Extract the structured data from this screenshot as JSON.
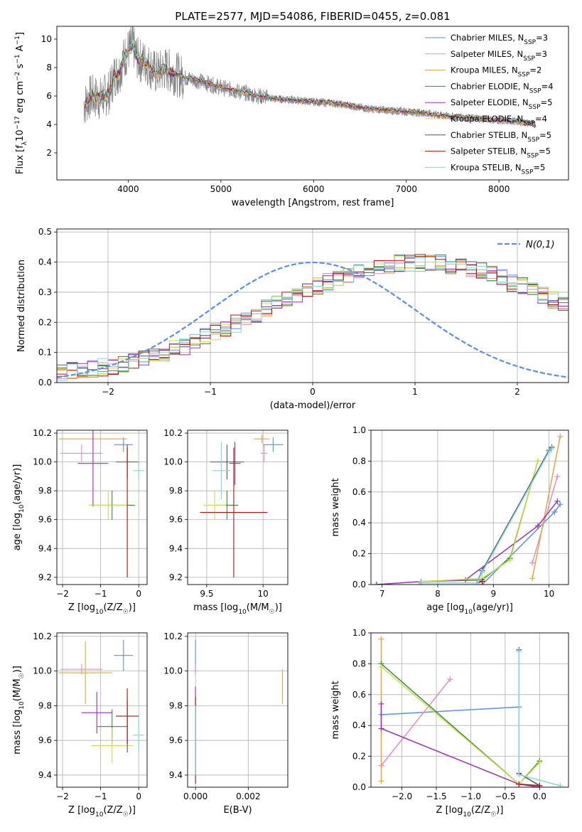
{
  "figure": {
    "title": "PLATE=2577, MJD=54086, FIBERID=0455, z=0.081"
  },
  "colors": {
    "chabrier_miles": "#5b8ee6",
    "salpeter_miles": "#e88bc4",
    "kroupa_miles": "#e8a33d",
    "chabrier_elodie": "#3a8a3a",
    "salpeter_elodie": "#9b30b5",
    "kroupa_elodie": "#c8e04a",
    "chabrier_stelib": "#555555",
    "salpeter_stelib": "#b01010",
    "kroupa_stelib": "#7fd8e0",
    "data": "#808080",
    "normal_curve": "#5b8ee6",
    "grid": "#b0b0b0"
  },
  "chart_data": [
    {
      "id": "spectrum",
      "type": "line",
      "title": "PLATE=2577, MJD=54086, FIBERID=0455, z=0.081",
      "xlabel": "wavelength [Angstrom, rest frame]",
      "ylabel": "Flux [f_λ10^-17 erg cm^-2 s^-1 A^-1]",
      "xlim": [
        3230,
        8750
      ],
      "ylim": [
        0.1,
        10.9
      ],
      "xticks": [
        4000,
        5000,
        6000,
        7000,
        8000
      ],
      "yticks": [
        2,
        4,
        6,
        8,
        10
      ],
      "grid": false,
      "legend_position": "top-right",
      "legend": [
        "Chabrier MILES, N_SSP=3",
        "Salpeter MILES, N_SSP=3",
        "Kroupa MILES, N_SSP=2",
        "Chabrier ELODIE, N_SSP=4",
        "Salpeter ELODIE, N_SSP=5",
        "Kroupa ELODIE, N_SSP=4",
        "Chabrier STELIB, N_SSP=5",
        "Salpeter STELIB, N_SSP=5",
        "Kroupa STELIB, N_SSP=5"
      ],
      "model_x": [
        3530,
        3600,
        3700,
        3800,
        3850,
        3900,
        3950,
        4000,
        4050,
        4100,
        4200,
        4300,
        4400,
        4500,
        4600,
        4800,
        5000,
        5200,
        5400,
        5600,
        5800,
        6000,
        6200,
        6400,
        6600,
        6800,
        7000,
        7200,
        7400,
        7600,
        7800,
        8000,
        8200,
        8400
      ],
      "model_y": [
        5.4,
        6.0,
        5.8,
        6.3,
        7.5,
        7.6,
        8.6,
        9.2,
        9.6,
        8.6,
        8.3,
        7.6,
        7.9,
        7.6,
        7.3,
        7.0,
        6.6,
        6.3,
        6.0,
        5.8,
        5.7,
        5.6,
        5.5,
        5.3,
        5.1,
        5.0,
        4.9,
        4.8,
        4.6,
        4.5,
        4.4,
        4.3,
        4.2,
        4.0
      ]
    },
    {
      "id": "residuals",
      "type": "histogram",
      "xlabel": "(data-model)/error",
      "ylabel": "Normed distribution",
      "xlim": [
        -2.5,
        2.5
      ],
      "ylim": [
        0,
        0.51
      ],
      "xticks": [
        -2,
        -1,
        0,
        1,
        2
      ],
      "yticks": [
        0.0,
        0.1,
        0.2,
        0.3,
        0.4,
        0.5
      ],
      "grid": true,
      "legend_position": "top-right",
      "normal_label": "N(0,1)",
      "bin_width": 0.1,
      "bin_start": -2.5,
      "reference_values": [
        0.032,
        0.04,
        0.04,
        0.046,
        0.05,
        0.055,
        0.06,
        0.07,
        0.08,
        0.088,
        0.1,
        0.11,
        0.12,
        0.135,
        0.15,
        0.165,
        0.18,
        0.195,
        0.21,
        0.228,
        0.245,
        0.26,
        0.275,
        0.29,
        0.305,
        0.32,
        0.333,
        0.346,
        0.358,
        0.37,
        0.378,
        0.385,
        0.39,
        0.395,
        0.398,
        0.399,
        0.398,
        0.395,
        0.39,
        0.385,
        0.378,
        0.37,
        0.358,
        0.346,
        0.333,
        0.32,
        0.305,
        0.29,
        0.275,
        0.26,
        0.245,
        0.228,
        0.21,
        0.195,
        0.18,
        0.165,
        0.15,
        0.135,
        0.12,
        0.11,
        0.1,
        0.088,
        0.08,
        0.07,
        0.06,
        0.055,
        0.05,
        0.046,
        0.04,
        0.04,
        0.032,
        0.03,
        0.028,
        0.027,
        0.026,
        0.025
      ]
    },
    {
      "id": "age_vs_Z",
      "type": "errorbar",
      "xlabel": "Z [log10(Z/Z_sun)]",
      "ylabel": "age [log10(age/yr)]",
      "xlim": [
        -2.15,
        0.22
      ],
      "ylim": [
        9.15,
        10.22
      ],
      "xticks": [
        -2,
        -1,
        0
      ],
      "yticks": [
        9.2,
        9.4,
        9.6,
        9.8,
        10.0,
        10.2
      ],
      "grid": true,
      "points": [
        {
          "x": -0.4,
          "y": 10.12,
          "xerr": 0.25,
          "yerr": 0.05,
          "c": "chabrier_miles"
        },
        {
          "x": -1.5,
          "y": 10.06,
          "xerr": 0.55,
          "yerr": 0.06,
          "c": "salpeter_miles"
        },
        {
          "x": -1.2,
          "y": 10.16,
          "xerr": 0.9,
          "yerr": 0.03,
          "c": "kroupa_miles"
        },
        {
          "x": -0.7,
          "y": 9.7,
          "xerr": 0.6,
          "yerr": 0.1,
          "c": "chabrier_elodie"
        },
        {
          "x": -1.2,
          "y": 9.99,
          "xerr": 0.4,
          "yerr": 0.3,
          "c": "salpeter_elodie"
        },
        {
          "x": -0.8,
          "y": 9.7,
          "xerr": 0.5,
          "yerr": 0.1,
          "c": "kroupa_elodie"
        },
        {
          "x": -0.3,
          "y": 10.0,
          "xerr": 0.3,
          "yerr": 0.12,
          "c": "chabrier_stelib"
        },
        {
          "x": -0.3,
          "y": 9.65,
          "xerr": 0.0,
          "yerr": 0.45,
          "c": "salpeter_stelib"
        },
        {
          "x": 0.0,
          "y": 9.94,
          "xerr": 0.15,
          "yerr": 0.06,
          "c": "kroupa_stelib"
        }
      ]
    },
    {
      "id": "age_vs_mass",
      "type": "errorbar",
      "xlabel": "mass [log10(M/M_sun)]",
      "ylabel": "",
      "xlim": [
        9.33,
        10.22
      ],
      "ylim": [
        9.15,
        10.22
      ],
      "xticks": [
        9.5,
        10.0
      ],
      "yticks": [
        9.2,
        9.4,
        9.6,
        9.8,
        10.0,
        10.2
      ],
      "grid": true,
      "points": [
        {
          "x": 10.09,
          "y": 10.12,
          "xerr": 0.09,
          "yerr": 0.05,
          "c": "chabrier_miles"
        },
        {
          "x": 10.01,
          "y": 10.06,
          "xerr": 0.03,
          "yerr": 0.06,
          "c": "salpeter_miles"
        },
        {
          "x": 9.99,
          "y": 10.16,
          "xerr": 0.07,
          "yerr": 0.03,
          "c": "kroupa_miles"
        },
        {
          "x": 9.68,
          "y": 9.7,
          "xerr": 0.1,
          "yerr": 0.1,
          "c": "chabrier_elodie"
        },
        {
          "x": 9.75,
          "y": 9.99,
          "xerr": 0.05,
          "yerr": 0.15,
          "c": "salpeter_elodie"
        },
        {
          "x": 9.57,
          "y": 9.7,
          "xerr": 0.1,
          "yerr": 0.1,
          "c": "kroupa_elodie"
        },
        {
          "x": 9.68,
          "y": 10.0,
          "xerr": 0.15,
          "yerr": 0.12,
          "c": "chabrier_stelib"
        },
        {
          "x": 9.74,
          "y": 9.65,
          "xerr": 0.3,
          "yerr": 0.45,
          "c": "salpeter_stelib"
        },
        {
          "x": 9.63,
          "y": 9.94,
          "xerr": 0.08,
          "yerr": 0.2,
          "c": "kroupa_stelib"
        }
      ]
    },
    {
      "id": "massweight_vs_age",
      "type": "line",
      "xlabel": "age [log10(age/yr)]",
      "ylabel": "mass weight",
      "xlim": [
        6.8,
        10.35
      ],
      "ylim": [
        0,
        1.0
      ],
      "xticks": [
        7,
        8,
        9,
        10
      ],
      "yticks": [
        0.0,
        0.2,
        0.4,
        0.6,
        0.8,
        1.0
      ],
      "grid": true,
      "series": [
        {
          "c": "chabrier_miles",
          "x": [
            8.8,
            10.1,
            10.2
          ],
          "y": [
            0.0,
            0.47,
            0.52
          ]
        },
        {
          "c": "salpeter_miles",
          "x": [
            9.7,
            10.15
          ],
          "y": [
            0.14,
            0.7
          ]
        },
        {
          "c": "kroupa_miles",
          "x": [
            9.7,
            10.2
          ],
          "y": [
            0.04,
            0.96
          ]
        },
        {
          "c": "chabrier_elodie",
          "x": [
            7.7,
            8.8,
            9.3,
            9.8
          ],
          "y": [
            0.02,
            0.03,
            0.17,
            0.8
          ]
        },
        {
          "c": "salpeter_elodie",
          "x": [
            6.9,
            7.7,
            8.5,
            9.8,
            10.15
          ],
          "y": [
            0.0,
            0.02,
            0.03,
            0.38,
            0.54
          ]
        },
        {
          "c": "kroupa_elodie",
          "x": [
            7.7,
            8.8,
            9.3,
            9.8
          ],
          "y": [
            0.02,
            0.04,
            0.16,
            0.8
          ]
        },
        {
          "c": "chabrier_stelib",
          "x": [
            7.7,
            8.7,
            8.8,
            10.0,
            10.05
          ],
          "y": [
            0.01,
            0.01,
            0.09,
            0.87,
            0.89
          ]
        },
        {
          "c": "salpeter_stelib",
          "x": [
            7.7,
            8.7,
            8.8
          ],
          "y": [
            0.01,
            0.01,
            0.02
          ]
        },
        {
          "c": "kroupa_stelib",
          "x": [
            7.7,
            8.7,
            8.8,
            10.0,
            10.05
          ],
          "y": [
            0.01,
            0.01,
            0.08,
            0.86,
            0.88
          ]
        }
      ]
    },
    {
      "id": "mass_vs_Z",
      "type": "errorbar",
      "xlabel": "Z [log10(Z/Z_sun)]",
      "ylabel": "mass [log10(M/M_sun)]",
      "xlim": [
        -2.15,
        0.22
      ],
      "ylim": [
        9.33,
        10.22
      ],
      "xticks": [
        -2,
        -1,
        0
      ],
      "yticks": [
        9.4,
        9.6,
        9.8,
        10.0,
        10.2
      ],
      "grid": true,
      "points": [
        {
          "x": -0.4,
          "y": 10.09,
          "xerr": 0.25,
          "yerr": 0.09,
          "c": "chabrier_miles"
        },
        {
          "x": -1.5,
          "y": 10.01,
          "xerr": 0.55,
          "yerr": 0.03,
          "c": "salpeter_miles"
        },
        {
          "x": -1.4,
          "y": 9.99,
          "xerr": 0.7,
          "yerr": 0.18,
          "c": "kroupa_miles"
        },
        {
          "x": -0.7,
          "y": 9.68,
          "xerr": 0.4,
          "yerr": 0.1,
          "c": "chabrier_elodie"
        },
        {
          "x": -1.1,
          "y": 9.76,
          "xerr": 0.4,
          "yerr": 0.12,
          "c": "salpeter_elodie"
        },
        {
          "x": -0.7,
          "y": 9.57,
          "xerr": 0.55,
          "yerr": 0.1,
          "c": "kroupa_elodie"
        },
        {
          "x": -0.3,
          "y": 9.68,
          "xerr": 0.0,
          "yerr": 0.15,
          "c": "chabrier_stelib"
        },
        {
          "x": -0.3,
          "y": 9.74,
          "xerr": 0.3,
          "yerr": 0.16,
          "c": "salpeter_stelib"
        },
        {
          "x": 0.0,
          "y": 9.63,
          "xerr": 0.15,
          "yerr": 0.1,
          "c": "kroupa_stelib"
        }
      ]
    },
    {
      "id": "mass_vs_ebv",
      "type": "errorbar",
      "xlabel": "E(B-V)",
      "ylabel": "",
      "xlim": [
        -0.0003,
        0.0035
      ],
      "ylim": [
        9.33,
        10.22
      ],
      "xticks": [
        0.0,
        0.002
      ],
      "xticklabels": [
        "0.000",
        "0.002"
      ],
      "yticks": [
        9.4,
        9.6,
        9.8,
        10.0,
        10.2
      ],
      "grid": true,
      "points": [
        {
          "x": 0.0,
          "y": 10.09,
          "xerr": 0.0,
          "yerr": 0.09,
          "c": "chabrier_miles"
        },
        {
          "x": 0.0,
          "y": 10.01,
          "xerr": 0.0,
          "yerr": 0.03,
          "c": "salpeter_miles"
        },
        {
          "x": 0.0033,
          "y": 9.91,
          "xerr": 0.0,
          "yerr": 0.1,
          "c": "kroupa_miles"
        },
        {
          "x": 0.0,
          "y": 9.6,
          "xerr": 0.0,
          "yerr": 0.2,
          "c": "chabrier_elodie"
        },
        {
          "x": 0.0,
          "y": 9.66,
          "xerr": 0.0,
          "yerr": 0.25,
          "c": "salpeter_elodie"
        },
        {
          "x": 0.0,
          "y": 9.6,
          "xerr": 0.0,
          "yerr": 0.2,
          "c": "kroupa_elodie"
        },
        {
          "x": 0.0,
          "y": 9.6,
          "xerr": 0.0,
          "yerr": 0.2,
          "c": "chabrier_stelib"
        },
        {
          "x": 0.0,
          "y": 9.6,
          "xerr": 0.0,
          "yerr": 0.25,
          "c": "salpeter_stelib"
        },
        {
          "x": 0.0,
          "y": 9.6,
          "xerr": 0.0,
          "yerr": 0.2,
          "c": "kroupa_stelib"
        }
      ]
    },
    {
      "id": "massweight_vs_Z",
      "type": "line",
      "xlabel": "Z [log10(Z/Z_sun)]",
      "ylabel": "mass weight",
      "xlim": [
        -2.45,
        0.42
      ],
      "ylim": [
        0,
        1.0
      ],
      "xticks": [
        -2.0,
        -1.5,
        -1.0,
        -0.5,
        0.0
      ],
      "xticklabels": [
        "−2.0",
        "−1.5",
        "−1.0",
        "−0.5",
        "0.0"
      ],
      "yticks": [
        0.0,
        0.2,
        0.4,
        0.6,
        0.8,
        1.0
      ],
      "grid": true,
      "series": [
        {
          "c": "chabrier_miles",
          "x": [
            -2.3,
            -0.3
          ],
          "y": [
            0.47,
            0.52
          ]
        },
        {
          "c": "salpeter_miles",
          "x": [
            -2.3,
            -1.3
          ],
          "y": [
            0.14,
            0.7
          ]
        },
        {
          "c": "kroupa_miles",
          "x": [
            -2.3,
            -2.3
          ],
          "y": [
            0.04,
            0.96
          ]
        },
        {
          "c": "chabrier_elodie",
          "x": [
            -2.3,
            -0.3,
            0.0
          ],
          "y": [
            0.8,
            0.02,
            0.17
          ]
        },
        {
          "c": "salpeter_elodie",
          "x": [
            -2.3,
            -2.3,
            -0.3,
            0.0
          ],
          "y": [
            0.54,
            0.38,
            0.02,
            0.0
          ]
        },
        {
          "c": "kroupa_elodie",
          "x": [
            -2.3,
            -0.3,
            0.0
          ],
          "y": [
            0.78,
            0.02,
            0.16
          ]
        },
        {
          "c": "chabrier_stelib",
          "x": [
            -0.3,
            -0.3,
            0.0
          ],
          "y": [
            0.89,
            0.09,
            0.01
          ]
        },
        {
          "c": "salpeter_stelib",
          "x": [
            -0.3,
            0.0
          ],
          "y": [
            0.02,
            0.01
          ]
        },
        {
          "c": "kroupa_stelib",
          "x": [
            -0.3,
            -0.3,
            0.3
          ],
          "y": [
            0.88,
            0.08,
            0.01
          ]
        }
      ]
    }
  ]
}
